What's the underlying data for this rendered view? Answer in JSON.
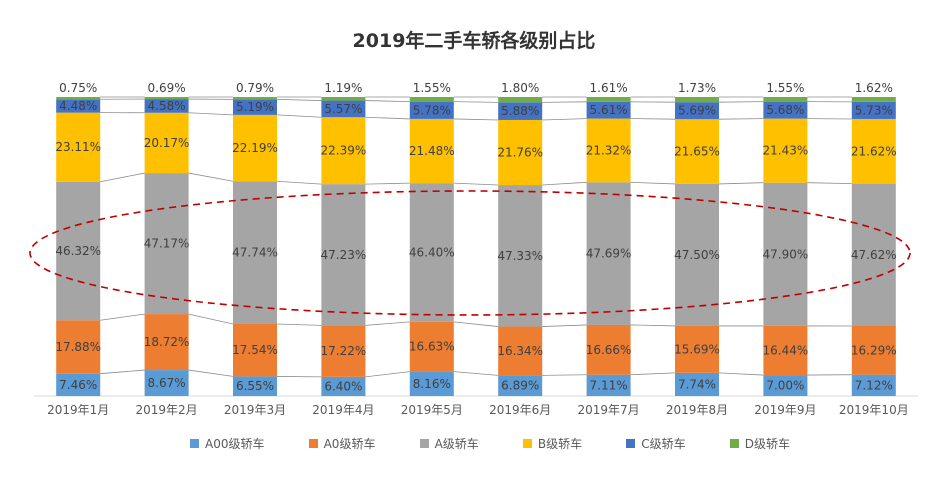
{
  "chart_data": {
    "type": "bar",
    "stacked": true,
    "percent_stacked": true,
    "title": "2019年二手车轿各级别占比",
    "categories": [
      "2019年1月",
      "2019年2月",
      "2019年3月",
      "2019年4月",
      "2019年5月",
      "2019年6月",
      "2019年7月",
      "2019年8月",
      "2019年9月",
      "2019年10月"
    ],
    "series": [
      {
        "name": "A00级轿车",
        "color": "#5b9bd5",
        "values": [
          7.46,
          8.67,
          6.55,
          6.4,
          8.16,
          6.89,
          7.11,
          7.74,
          7.0,
          7.12
        ],
        "labels": [
          "7.46%",
          "8.67%",
          "6.55%",
          "6.40%",
          "8.16%",
          "6.89%",
          "7.11%",
          "7.74%",
          "7.00%",
          "7.12%"
        ]
      },
      {
        "name": "A0级轿车",
        "color": "#ed7d31",
        "values": [
          17.88,
          18.72,
          17.54,
          17.22,
          16.63,
          16.34,
          16.66,
          15.69,
          16.44,
          16.29
        ],
        "labels": [
          "17.88%",
          "18.72%",
          "17.54%",
          "17.22%",
          "16.63%",
          "16.34%",
          "16.66%",
          "15.69%",
          "16.44%",
          "16.29%"
        ]
      },
      {
        "name": "A级轿车",
        "color": "#a5a5a5",
        "values": [
          46.32,
          47.17,
          47.74,
          47.23,
          46.4,
          47.33,
          47.69,
          47.5,
          47.9,
          47.62
        ],
        "labels": [
          "46.32%",
          "47.17%",
          "47.74%",
          "47.23%",
          "46.40%",
          "47.33%",
          "47.69%",
          "47.50%",
          "47.90%",
          "47.62%"
        ]
      },
      {
        "name": "B级轿车",
        "color": "#ffc000",
        "values": [
          23.11,
          20.17,
          22.19,
          22.39,
          21.48,
          21.76,
          21.32,
          21.65,
          21.43,
          21.62
        ],
        "labels": [
          "23.11%",
          "20.17%",
          "22.19%",
          "22.39%",
          "21.48%",
          "21.76%",
          "21.32%",
          "21.65%",
          "21.43%",
          "21.62%"
        ]
      },
      {
        "name": "C级轿车",
        "color": "#4472c4",
        "values": [
          4.48,
          4.58,
          5.19,
          5.57,
          5.78,
          5.88,
          5.61,
          5.69,
          5.68,
          5.73
        ],
        "labels": [
          "4.48%",
          "4.58%",
          "5.19%",
          "5.57%",
          "5.78%",
          "5.88%",
          "5.61%",
          "5.69%",
          "5.68%",
          "5.73%"
        ]
      },
      {
        "name": "D级轿车",
        "color": "#70ad47",
        "values": [
          0.75,
          0.69,
          0.79,
          1.19,
          1.55,
          1.8,
          1.61,
          1.73,
          1.55,
          1.62
        ],
        "labels": [
          "0.75%",
          "0.69%",
          "0.79%",
          "1.19%",
          "1.55%",
          "1.80%",
          "1.61%",
          "1.73%",
          "1.55%",
          "1.62%"
        ]
      }
    ],
    "ylim": [
      0,
      100
    ],
    "grid": false,
    "legend_position": "bottom",
    "highlight_series": "A级轿车",
    "highlight_style": "red dashed ellipse"
  }
}
